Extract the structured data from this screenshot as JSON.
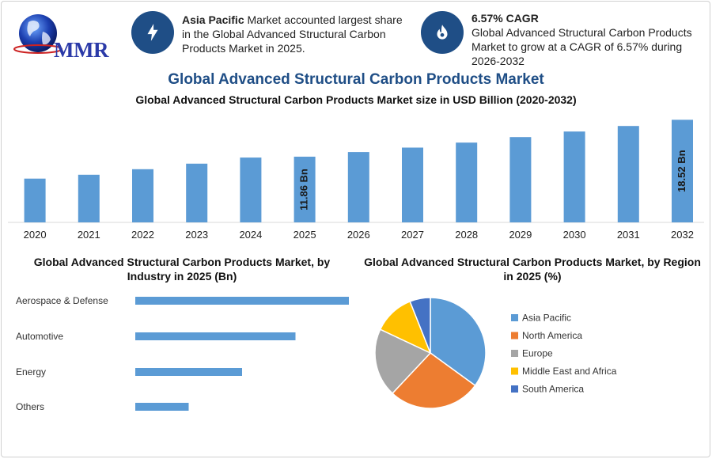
{
  "logo": {
    "text": "MMR"
  },
  "info": [
    {
      "icon": "lightning-icon",
      "bold": "Asia Pacific",
      "text": " Market accounted largest share in the Global Advanced Structural Carbon Products Market in 2025."
    },
    {
      "icon": "flame-icon",
      "bold": "6.57% CAGR",
      "text": "Global Advanced Structural Carbon Products Market to grow at a CAGR of 6.57% during 2026-2032"
    }
  ],
  "colors": {
    "bar": "#5b9bd5",
    "title": "#1f4e86",
    "badge": "#1f4e86"
  },
  "chart_data": [
    {
      "type": "bar",
      "title": "Global Advanced Structural Carbon Products Market",
      "subtitle": "Global Advanced Structural Carbon Products Market size in USD Billion (2020-2032)",
      "categories": [
        "2020",
        "2021",
        "2022",
        "2023",
        "2024",
        "2025",
        "2026",
        "2027",
        "2028",
        "2029",
        "2030",
        "2031",
        "2032"
      ],
      "values": [
        7.9,
        8.6,
        9.6,
        10.6,
        11.7,
        11.86,
        12.7,
        13.5,
        14.4,
        15.4,
        16.4,
        17.4,
        18.52
      ],
      "data_labels": {
        "2025": "11.86 Bn",
        "2032": "18.52 Bn"
      },
      "ylim": [
        0,
        20
      ]
    },
    {
      "type": "bar",
      "orientation": "horizontal",
      "title": "Global Advanced Structural Carbon Products Market, by Industry in 2025 (Bn)",
      "categories": [
        "Aerospace & Defense",
        "Automotive",
        "Energy",
        "Others"
      ],
      "values": [
        100,
        75,
        50,
        25
      ]
    },
    {
      "type": "pie",
      "title": "Global Advanced Structural Carbon Products Market, by Region in 2025 (%)",
      "labels": [
        "Asia Pacific",
        "North America",
        "Europe",
        "Middle East and Africa",
        "South America"
      ],
      "values": [
        35,
        27,
        20,
        12,
        6
      ],
      "colors": [
        "#5b9bd5",
        "#ed7d31",
        "#a5a5a5",
        "#ffc000",
        "#4472c4"
      ],
      "legend": "right"
    }
  ]
}
